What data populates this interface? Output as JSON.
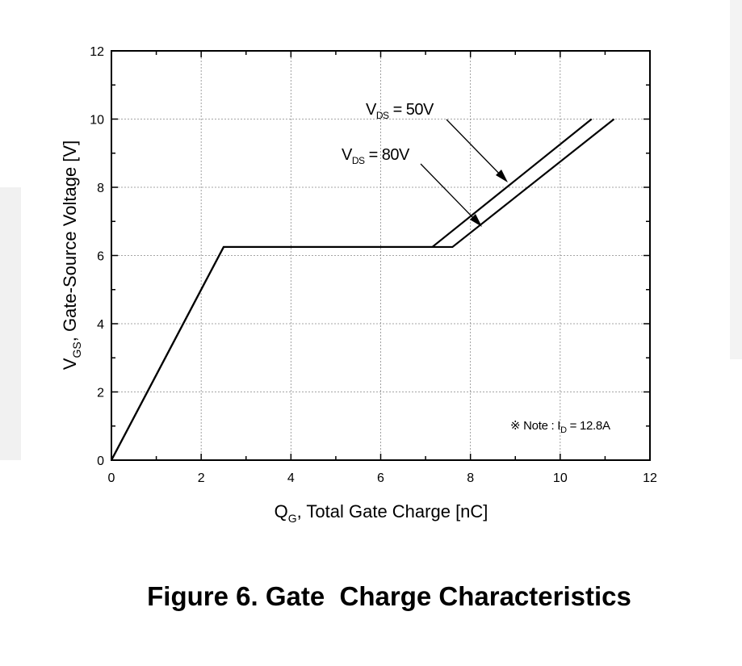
{
  "figure": {
    "caption": "Figure 6. Gate  Charge Characteristics"
  },
  "chart_data": {
    "type": "line",
    "xlabel": {
      "main": "Q",
      "sub": "G",
      "rest": ", Total Gate Charge [nC]"
    },
    "ylabel": {
      "main": "V",
      "sub": "GS",
      "rest": ",  Gate-Source Voltage [V]"
    },
    "xlim": [
      0,
      12
    ],
    "ylim": [
      0,
      12
    ],
    "x_ticks": [
      0,
      2,
      4,
      6,
      8,
      10,
      12
    ],
    "y_ticks": [
      0,
      2,
      4,
      6,
      8,
      10,
      12
    ],
    "grid": true,
    "series": [
      {
        "name": "VDS = 50V",
        "x": [
          0,
          2.5,
          7.15,
          10.7
        ],
        "y": [
          0,
          6.25,
          6.25,
          10.0
        ]
      },
      {
        "name": "VDS = 80V",
        "x": [
          0,
          2.5,
          7.6,
          11.2
        ],
        "y": [
          0,
          6.25,
          6.25,
          10.0
        ]
      }
    ],
    "annotations": [
      {
        "id": "vds50",
        "main": "V",
        "sub": "DS",
        "rest": " = 50V"
      },
      {
        "id": "vds80",
        "main": "V",
        "sub": "DS",
        "rest": " = 80V"
      },
      {
        "id": "note",
        "prefix": "※ Note : I",
        "sub": "D",
        "rest": " = 12.8A"
      }
    ]
  }
}
